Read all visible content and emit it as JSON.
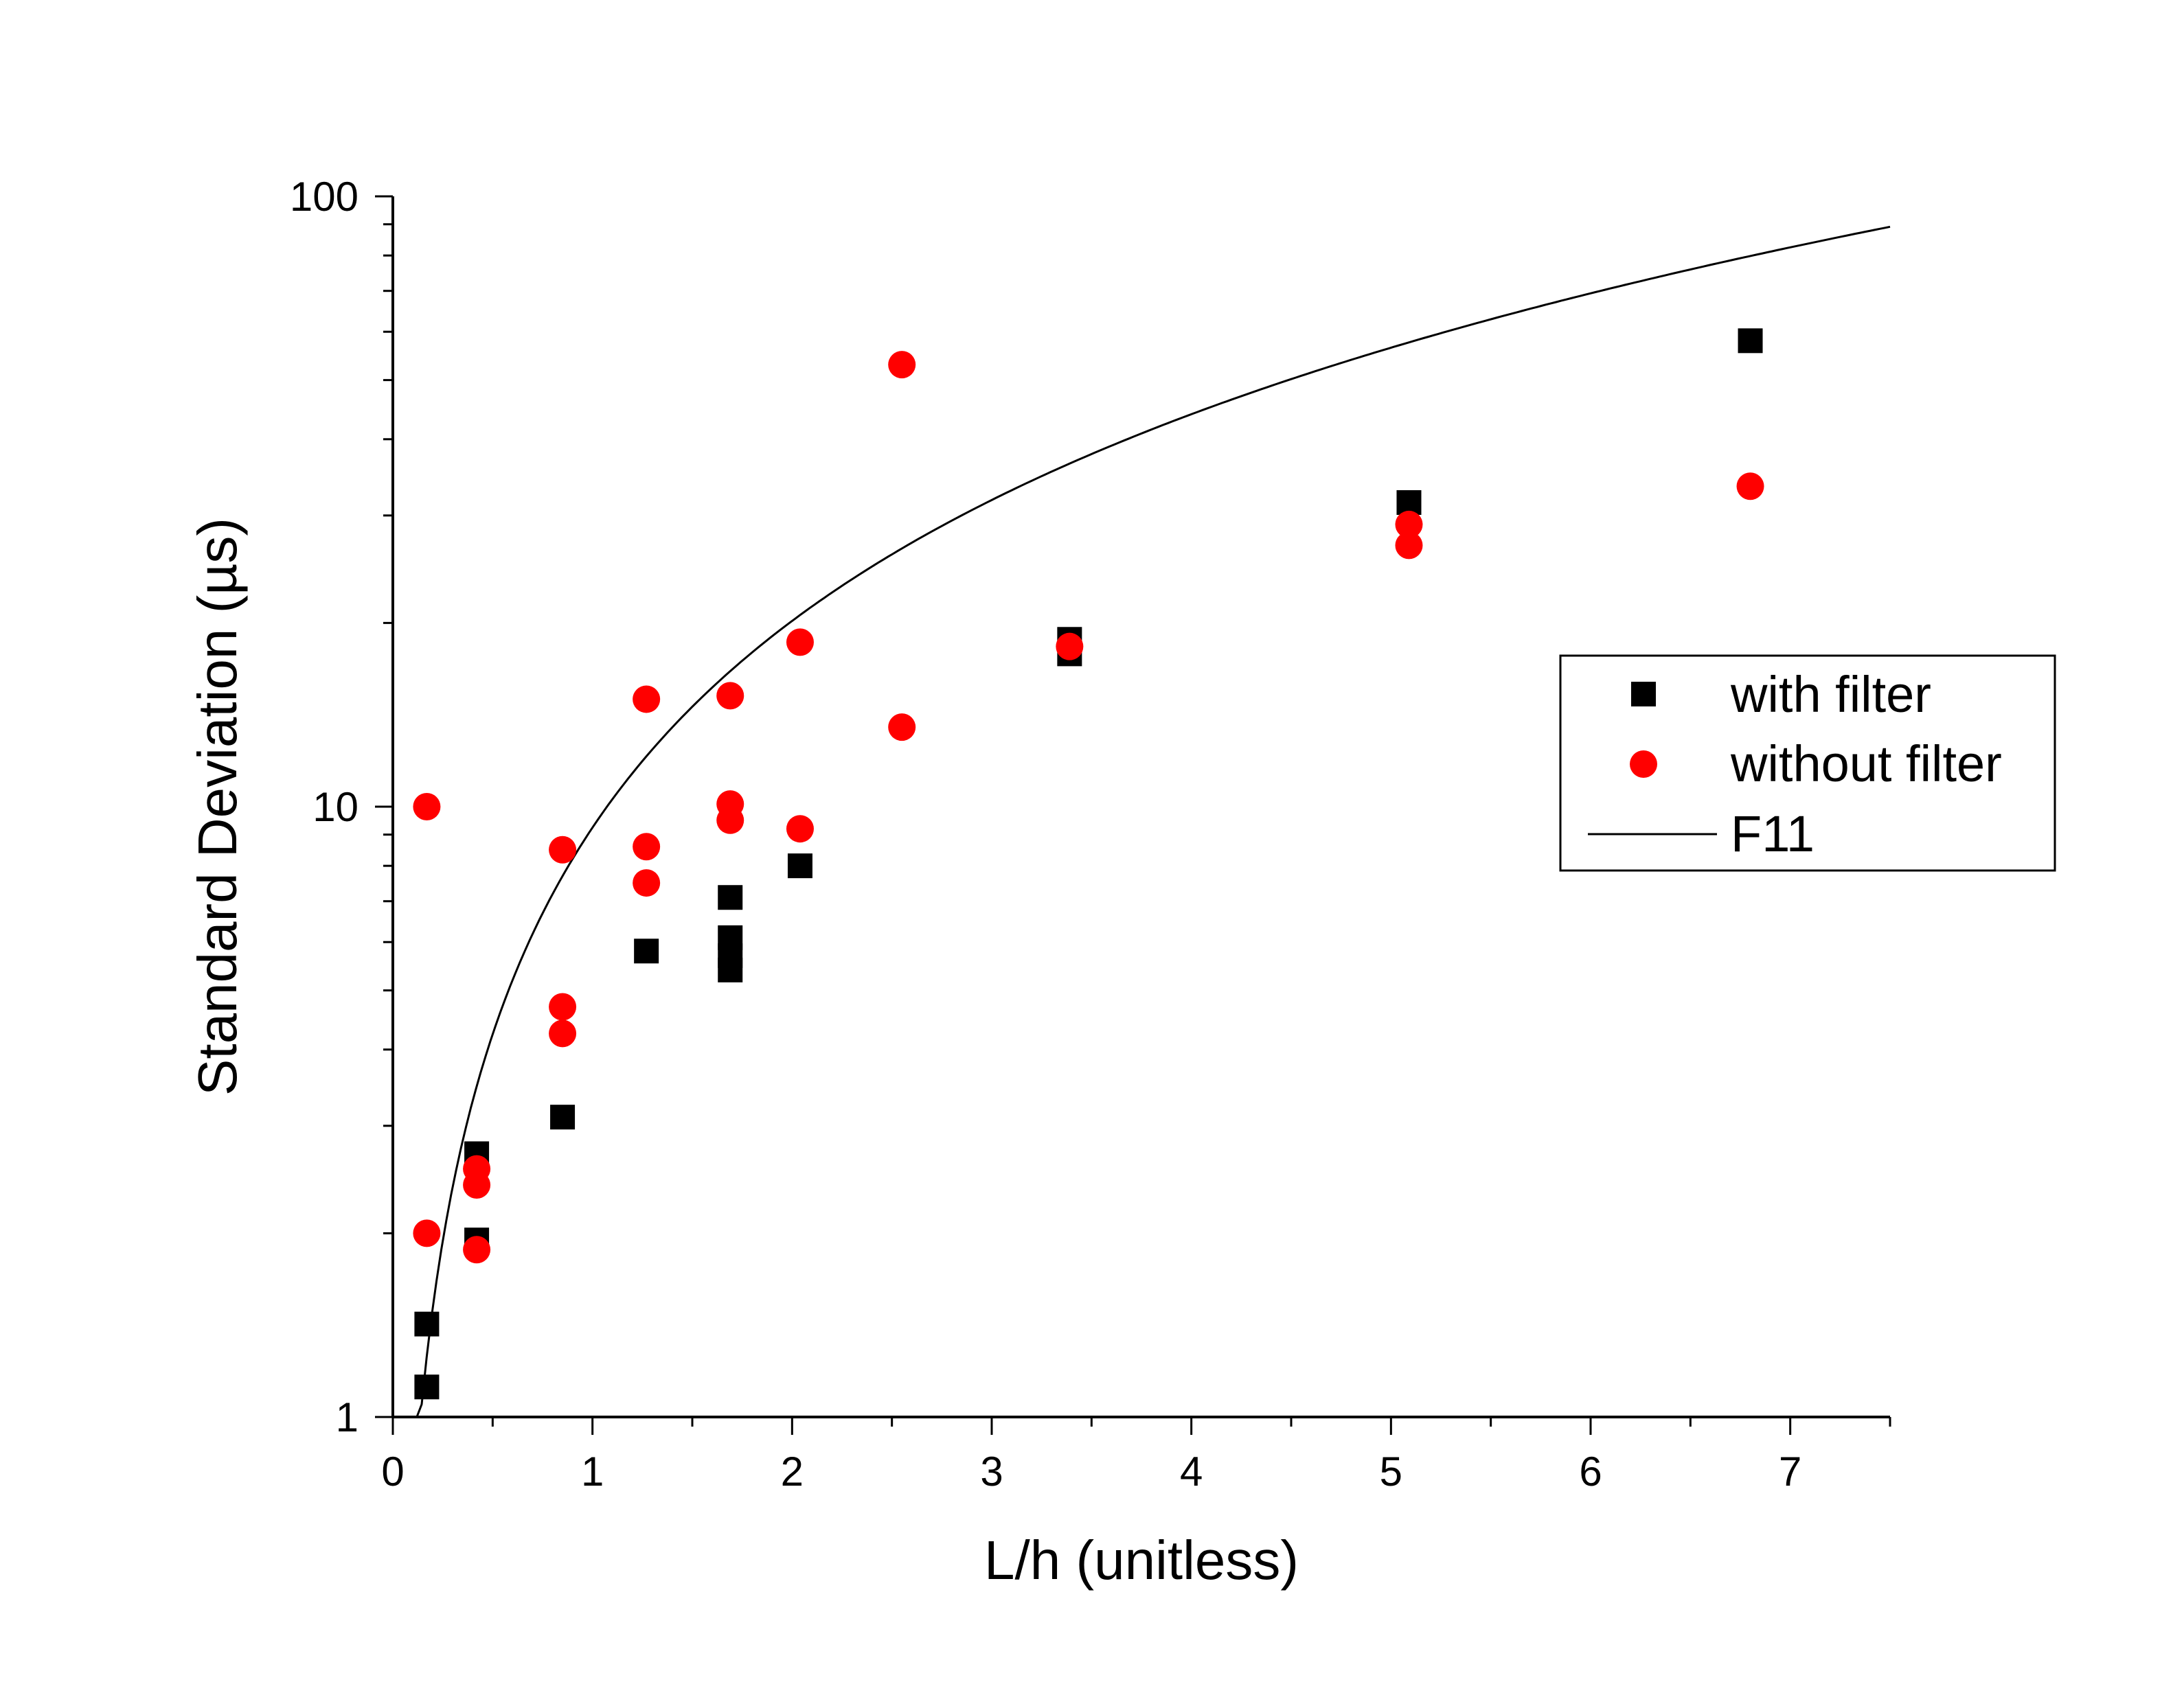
{
  "chart_data": {
    "type": "scatter",
    "title": "",
    "xlabel": "L/h (unitless)",
    "ylabel": "Standard Deviation (µs)",
    "xlim": [
      0,
      7.5
    ],
    "ylim": [
      1,
      100
    ],
    "yscale": "log",
    "grid": false,
    "legend_position": "right",
    "x_ticks": [
      0,
      1,
      2,
      3,
      4,
      5,
      6,
      7
    ],
    "y_ticks": [
      1,
      10,
      100
    ],
    "series": [
      {
        "name": "with filter",
        "marker": "square",
        "color": "#000000",
        "points": [
          [
            0.17,
            1.12
          ],
          [
            0.17,
            1.42
          ],
          [
            0.42,
            1.95
          ],
          [
            0.42,
            2.7
          ],
          [
            0.85,
            3.1
          ],
          [
            1.27,
            5.8
          ],
          [
            1.69,
            5.4
          ],
          [
            1.69,
            5.7
          ],
          [
            1.69,
            6.1
          ],
          [
            1.69,
            7.1
          ],
          [
            2.04,
            8.0
          ],
          [
            3.39,
            17.8
          ],
          [
            3.39,
            18.8
          ],
          [
            5.09,
            31.5
          ],
          [
            6.8,
            58.0
          ]
        ]
      },
      {
        "name": "without filter",
        "marker": "circle",
        "color": "#ff0000",
        "points": [
          [
            0.17,
            10.0
          ],
          [
            0.17,
            2.0
          ],
          [
            0.42,
            1.88
          ],
          [
            0.42,
            2.4
          ],
          [
            0.42,
            2.55
          ],
          [
            0.85,
            8.5
          ],
          [
            0.85,
            4.7
          ],
          [
            0.85,
            4.25
          ],
          [
            1.27,
            15.0
          ],
          [
            1.27,
            8.6
          ],
          [
            1.27,
            7.5
          ],
          [
            1.69,
            15.2
          ],
          [
            1.69,
            10.1
          ],
          [
            1.69,
            9.5
          ],
          [
            2.04,
            18.6
          ],
          [
            2.04,
            9.2
          ],
          [
            2.55,
            53.0
          ],
          [
            2.55,
            13.5
          ],
          [
            3.39,
            18.3
          ],
          [
            5.09,
            29.0
          ],
          [
            5.09,
            26.8
          ],
          [
            6.8,
            33.5
          ]
        ]
      },
      {
        "name": "F11",
        "type": "line",
        "color": "#000000",
        "fit": {
          "a": 9.24,
          "b": 1.125,
          "x0": 0.12,
          "x1": 7.5
        }
      }
    ]
  }
}
